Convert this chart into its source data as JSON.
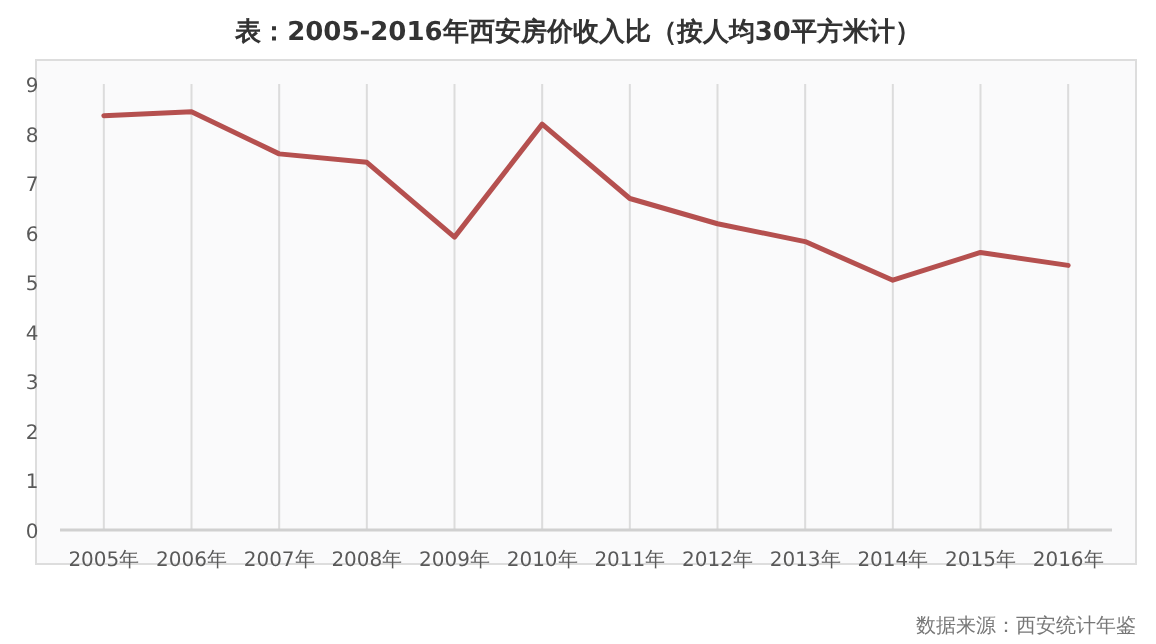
{
  "chart_data": {
    "type": "line",
    "title": "表：2005-2016年西安房价收入比（按人均30平方米计）",
    "categories": [
      "2005年",
      "2006年",
      "2007年",
      "2008年",
      "2009年",
      "2010年",
      "2011年",
      "2012年",
      "2013年",
      "2014年",
      "2015年",
      "2016年"
    ],
    "series": [
      {
        "color": "#b5504f",
        "values": [
          8.36,
          8.44,
          7.59,
          7.42,
          5.91,
          8.19,
          6.69,
          6.18,
          5.82,
          5.04,
          5.6,
          5.34
        ]
      }
    ],
    "ylim": [
      0,
      9
    ],
    "yticks": [
      0,
      1,
      2,
      3,
      4,
      5,
      6,
      7,
      8,
      9
    ],
    "grid": "x",
    "marker": "none",
    "line_style": "solid",
    "annotations": [
      "数据来源：西安统计年鉴"
    ]
  }
}
